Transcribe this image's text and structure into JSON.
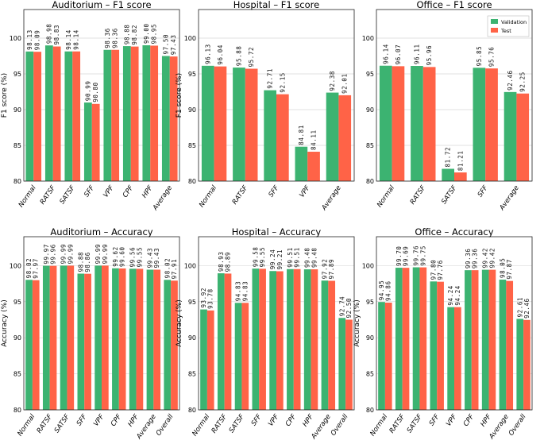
{
  "colors": {
    "validation": "#3cb371",
    "test": "#ff6347"
  },
  "legend": {
    "validation_label": "Validation",
    "test_label": "Test"
  },
  "chart_data": [
    {
      "type": "bar",
      "title": "Auditorium – F1 score",
      "ylabel": "F1 score (%)",
      "xlabel": "",
      "ylim": [
        80,
        104
      ],
      "yticks": [
        80,
        85,
        90,
        95,
        100
      ],
      "grid": true,
      "legend": false,
      "categories": [
        "Normal",
        "RATSF",
        "SATSF",
        "SFF",
        "VPF",
        "CPF",
        "HPF",
        "Average"
      ],
      "series": [
        {
          "name": "Validation",
          "values": [
            98.13,
            98.98,
            98.14,
            90.99,
            98.36,
            98.88,
            99.0,
            97.5
          ]
        },
        {
          "name": "Test",
          "values": [
            98.09,
            98.83,
            98.14,
            90.8,
            98.36,
            98.82,
            98.95,
            97.43
          ]
        }
      ]
    },
    {
      "type": "bar",
      "title": "Hospital – F1 score",
      "ylabel": "F1 score (%)",
      "xlabel": "",
      "ylim": [
        80,
        104
      ],
      "yticks": [
        80,
        85,
        90,
        95,
        100
      ],
      "grid": true,
      "legend": false,
      "categories": [
        "Normal",
        "RATSF",
        "SFF",
        "VPF",
        "Average"
      ],
      "series": [
        {
          "name": "Validation",
          "values": [
            96.13,
            95.88,
            92.71,
            84.81,
            92.38
          ]
        },
        {
          "name": "Test",
          "values": [
            96.04,
            95.72,
            92.15,
            84.11,
            92.01
          ]
        }
      ]
    },
    {
      "type": "bar",
      "title": "Office – F1 score",
      "ylabel": "",
      "xlabel": "",
      "ylim": [
        80,
        104
      ],
      "yticks": [
        80,
        85,
        90,
        95,
        100
      ],
      "grid": true,
      "legend": "top-right",
      "categories": [
        "Normal",
        "RATSF",
        "SATSF",
        "SFF",
        "Average"
      ],
      "series": [
        {
          "name": "Validation",
          "values": [
            96.14,
            96.11,
            81.72,
            95.85,
            92.46
          ]
        },
        {
          "name": "Test",
          "values": [
            96.07,
            95.96,
            81.21,
            95.76,
            92.25
          ]
        }
      ]
    },
    {
      "type": "bar",
      "title": "Auditorium – Accuracy",
      "ylabel": "Accuracy (%)",
      "xlabel": "",
      "ylim": [
        80,
        104
      ],
      "yticks": [
        80,
        85,
        90,
        95,
        100
      ],
      "grid": true,
      "legend": false,
      "categories": [
        "Normal",
        "RATSF",
        "SATSF",
        "SFF",
        "VPF",
        "CPF",
        "HPF",
        "Average",
        "Overall"
      ],
      "series": [
        {
          "name": "Validation",
          "values": [
            98.02,
            99.97,
            99.99,
            98.88,
            99.99,
            99.62,
            99.56,
            99.43,
            98.02
          ]
        },
        {
          "name": "Test",
          "values": [
            97.97,
            99.96,
            99.99,
            98.86,
            99.99,
            99.6,
            99.55,
            99.43,
            97.91
          ]
        }
      ]
    },
    {
      "type": "bar",
      "title": "Hospital – Accuracy",
      "ylabel": "Accuracy (%)",
      "xlabel": "",
      "ylim": [
        80,
        104
      ],
      "yticks": [
        80,
        85,
        90,
        95,
        100
      ],
      "grid": true,
      "legend": false,
      "categories": [
        "Normal",
        "RATSF",
        "SATSF",
        "SFF",
        "VPF",
        "CPF",
        "HPF",
        "Average",
        "Overall"
      ],
      "series": [
        {
          "name": "Validation",
          "values": [
            93.92,
            98.93,
            94.83,
            99.58,
            99.24,
            99.51,
            99.48,
            97.92,
            92.74
          ]
        },
        {
          "name": "Test",
          "values": [
            93.78,
            98.89,
            94.83,
            99.55,
            99.21,
            99.51,
            99.48,
            97.89,
            92.5
          ]
        }
      ]
    },
    {
      "type": "bar",
      "title": "Office – Accuracy",
      "ylabel": "Accuracy (%)",
      "xlabel": "",
      "ylim": [
        80,
        104
      ],
      "yticks": [
        80,
        85,
        90,
        95,
        100
      ],
      "grid": true,
      "legend": false,
      "categories": [
        "Normal",
        "RATSF",
        "SATSF",
        "SFF",
        "VPF",
        "CPF",
        "HPF",
        "Average",
        "Overall"
      ],
      "series": [
        {
          "name": "Validation",
          "values": [
            94.95,
            99.7,
            99.76,
            97.8,
            94.24,
            99.36,
            99.42,
            98.05,
            92.61
          ]
        },
        {
          "name": "Test",
          "values": [
            94.86,
            99.69,
            99.75,
            97.76,
            94.24,
            99.36,
            99.42,
            97.87,
            92.46
          ]
        }
      ]
    }
  ]
}
